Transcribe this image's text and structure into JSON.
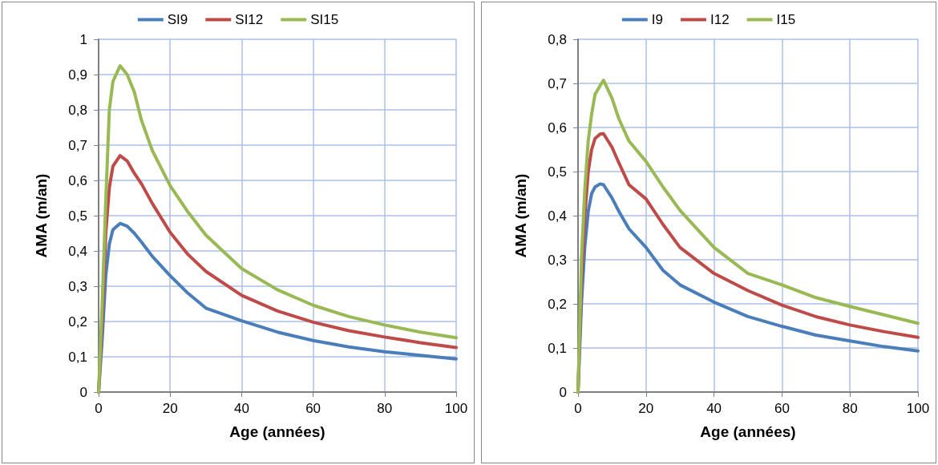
{
  "chart_data": [
    {
      "type": "line",
      "xlabel": "Age (années)",
      "ylabel": "AMA (m/an)",
      "xlim": [
        0,
        100
      ],
      "xticks": [
        0,
        20,
        40,
        60,
        80,
        100
      ],
      "ylim": [
        0,
        1
      ],
      "yticks": [
        {
          "value": 0,
          "label": "0"
        },
        {
          "value": 0.1,
          "label": "0,1"
        },
        {
          "value": 0.2,
          "label": "0,2"
        },
        {
          "value": 0.3,
          "label": "0,3"
        },
        {
          "value": 0.4,
          "label": "0,4"
        },
        {
          "value": 0.5,
          "label": "0,5"
        },
        {
          "value": 0.6,
          "label": "0,6"
        },
        {
          "value": 0.7,
          "label": "0,7"
        },
        {
          "value": 0.8,
          "label": "0,8"
        },
        {
          "value": 0.9,
          "label": "0,9"
        },
        1
      ],
      "grid": true,
      "legend": "top",
      "marker": "none",
      "line_style": "solid",
      "x": [
        0,
        1,
        2,
        3,
        4,
        6,
        8,
        10,
        12,
        15,
        20,
        25,
        30,
        40,
        50,
        60,
        70,
        80,
        90,
        100
      ],
      "series": [
        {
          "name": "SI9",
          "color": "#4a7ebb",
          "values": [
            0,
            0.15,
            0.33,
            0.42,
            0.46,
            0.478,
            0.47,
            0.45,
            0.425,
            0.385,
            0.33,
            0.28,
            0.238,
            0.202,
            0.17,
            0.146,
            0.128,
            0.114,
            0.104,
            0.094
          ]
        },
        {
          "name": "SI12",
          "color": "#be4b48",
          "values": [
            0,
            0.2,
            0.45,
            0.58,
            0.64,
            0.67,
            0.655,
            0.62,
            0.59,
            0.535,
            0.453,
            0.39,
            0.342,
            0.274,
            0.23,
            0.198,
            0.174,
            0.156,
            0.14,
            0.126
          ]
        },
        {
          "name": "SI15",
          "color": "#98b954",
          "values": [
            0,
            0.25,
            0.54,
            0.8,
            0.88,
            0.925,
            0.9,
            0.85,
            0.77,
            0.685,
            0.585,
            0.51,
            0.445,
            0.35,
            0.29,
            0.246,
            0.214,
            0.19,
            0.17,
            0.154
          ]
        }
      ]
    },
    {
      "type": "line",
      "xlabel": "Age (années)",
      "ylabel": "AMA (m/an)",
      "xlim": [
        0,
        100
      ],
      "xticks": [
        0,
        20,
        40,
        60,
        80,
        100
      ],
      "ylim": [
        0,
        0.8
      ],
      "yticks": [
        {
          "value": 0,
          "label": "0"
        },
        {
          "value": 0.1,
          "label": "0,1"
        },
        {
          "value": 0.2,
          "label": "0,2"
        },
        {
          "value": 0.3,
          "label": "0,3"
        },
        {
          "value": 0.4,
          "label": "0,4"
        },
        {
          "value": 0.5,
          "label": "0,5"
        },
        {
          "value": 0.6,
          "label": "0,6"
        },
        {
          "value": 0.7,
          "label": "0,7"
        },
        {
          "value": 0.8,
          "label": "0,8"
        }
      ],
      "grid": true,
      "legend": "top",
      "marker": "none",
      "line_style": "solid",
      "x": [
        0,
        1,
        2,
        3,
        4,
        5,
        6.5,
        7.5,
        10,
        12,
        15,
        20,
        25,
        30,
        40,
        50,
        60,
        70,
        80,
        90,
        100
      ],
      "series": [
        {
          "name": "I9",
          "color": "#4a7ebb",
          "values": [
            0,
            0.2,
            0.33,
            0.41,
            0.45,
            0.465,
            0.472,
            0.47,
            0.44,
            0.41,
            0.37,
            0.328,
            0.276,
            0.243,
            0.204,
            0.171,
            0.149,
            0.129,
            0.116,
            0.103,
            0.093
          ]
        },
        {
          "name": "I12",
          "color": "#be4b48",
          "values": [
            0,
            0.25,
            0.4,
            0.5,
            0.55,
            0.575,
            0.585,
            0.586,
            0.555,
            0.52,
            0.47,
            0.438,
            0.38,
            0.328,
            0.269,
            0.23,
            0.197,
            0.171,
            0.152,
            0.137,
            0.124
          ]
        },
        {
          "name": "I15",
          "color": "#98b954",
          "values": [
            0,
            0.3,
            0.46,
            0.57,
            0.63,
            0.675,
            0.695,
            0.707,
            0.666,
            0.62,
            0.569,
            0.523,
            0.465,
            0.412,
            0.328,
            0.269,
            0.243,
            0.214,
            0.194,
            0.175,
            0.156
          ]
        }
      ]
    }
  ]
}
